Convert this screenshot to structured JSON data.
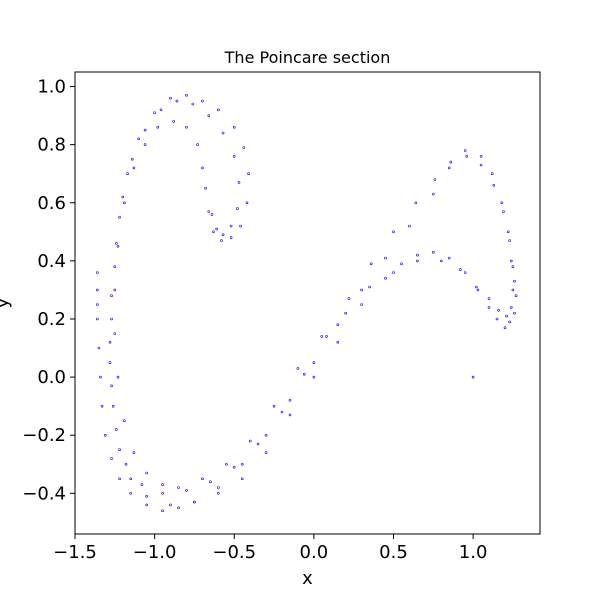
{
  "chart_data": {
    "type": "scatter",
    "title": "The Poincare section",
    "xlabel": "x",
    "ylabel": "y",
    "xlim": [
      -1.5,
      1.42
    ],
    "ylim": [
      -0.54,
      1.05
    ],
    "x_ticks": [
      -1.5,
      -1.0,
      -0.5,
      0.0,
      0.5,
      1.0
    ],
    "x_tick_labels": [
      "−1.5",
      "−1.0",
      "−0.5",
      "0.0",
      "0.5",
      "1.0"
    ],
    "y_ticks": [
      -0.4,
      -0.2,
      0.0,
      0.2,
      0.4,
      0.6,
      0.8,
      1.0
    ],
    "y_tick_labels": [
      "−0.4",
      "−0.2",
      "0.0",
      "0.2",
      "0.4",
      "0.6",
      "0.8",
      "1.0"
    ],
    "grid": false,
    "marker_color": "#0000ff",
    "series": [
      {
        "points": [
          [
            -1.36,
            0.36
          ],
          [
            -1.36,
            0.3
          ],
          [
            -1.36,
            0.25
          ],
          [
            -1.36,
            0.2
          ],
          [
            -1.35,
            0.1
          ],
          [
            -1.34,
            0.0
          ],
          [
            -1.33,
            -0.1
          ],
          [
            -1.31,
            -0.2
          ],
          [
            -1.27,
            -0.28
          ],
          [
            -1.22,
            -0.35
          ],
          [
            -1.15,
            -0.4
          ],
          [
            -1.05,
            -0.44
          ],
          [
            -0.95,
            -0.46
          ],
          [
            -0.85,
            -0.45
          ],
          [
            -0.75,
            -0.43
          ],
          [
            -0.6,
            -0.38
          ],
          [
            -0.45,
            -0.3
          ],
          [
            -0.3,
            -0.2
          ],
          [
            -0.15,
            -0.08
          ],
          [
            0.0,
            0.05
          ],
          [
            0.15,
            0.18
          ],
          [
            0.3,
            0.3
          ],
          [
            0.45,
            0.41
          ],
          [
            0.6,
            0.52
          ],
          [
            0.75,
            0.63
          ],
          [
            0.85,
            0.72
          ],
          [
            0.95,
            0.78
          ],
          [
            1.05,
            0.76
          ],
          [
            1.12,
            0.7
          ],
          [
            1.18,
            0.6
          ],
          [
            1.22,
            0.5
          ],
          [
            1.24,
            0.4
          ],
          [
            1.26,
            0.33
          ],
          [
            1.27,
            0.28
          ],
          [
            1.26,
            0.22
          ],
          [
            1.23,
            0.19
          ],
          [
            1.2,
            0.17
          ],
          [
            1.15,
            0.2
          ],
          [
            1.1,
            0.24
          ],
          [
            1.03,
            0.3
          ],
          [
            0.95,
            0.36
          ],
          [
            0.85,
            0.41
          ],
          [
            0.75,
            0.43
          ],
          [
            0.65,
            0.42
          ],
          [
            0.55,
            0.39
          ],
          [
            0.45,
            0.34
          ],
          [
            0.3,
            0.25
          ],
          [
            0.15,
            0.12
          ],
          [
            0.0,
            0.0
          ],
          [
            -0.15,
            -0.13
          ],
          [
            -0.3,
            -0.26
          ],
          [
            -0.45,
            -0.35
          ],
          [
            -0.6,
            -0.4
          ],
          [
            -0.75,
            -0.43
          ],
          [
            -0.9,
            -0.44
          ],
          [
            -1.05,
            -0.41
          ],
          [
            -1.15,
            -0.35
          ],
          [
            -1.22,
            -0.25
          ],
          [
            -1.26,
            -0.1
          ],
          [
            -1.28,
            0.05
          ],
          [
            -1.27,
            0.2
          ],
          [
            -1.25,
            0.38
          ],
          [
            -1.22,
            0.55
          ],
          [
            -1.17,
            0.7
          ],
          [
            -1.1,
            0.82
          ],
          [
            -1.0,
            0.91
          ],
          [
            -0.9,
            0.96
          ],
          [
            -0.8,
            0.97
          ],
          [
            -0.7,
            0.95
          ],
          [
            -0.6,
            0.92
          ],
          [
            -0.5,
            0.86
          ],
          [
            -0.44,
            0.79
          ],
          [
            -0.41,
            0.7
          ],
          [
            -0.42,
            0.6
          ],
          [
            -0.46,
            0.52
          ],
          [
            -0.52,
            0.48
          ],
          [
            -0.58,
            0.47
          ],
          [
            -0.63,
            0.5
          ],
          [
            -0.66,
            0.57
          ],
          [
            -0.68,
            0.65
          ],
          [
            -0.7,
            0.72
          ],
          [
            -0.73,
            0.8
          ],
          [
            -0.8,
            0.86
          ],
          [
            -0.88,
            0.88
          ],
          [
            -0.98,
            0.86
          ],
          [
            -1.06,
            0.8
          ],
          [
            -1.13,
            0.72
          ],
          [
            -1.19,
            0.6
          ],
          [
            -1.23,
            0.45
          ],
          [
            -1.25,
            0.3
          ],
          [
            -1.25,
            0.15
          ],
          [
            -1.23,
            0.0
          ],
          [
            -1.19,
            -0.15
          ],
          [
            -1.13,
            -0.26
          ],
          [
            -1.05,
            -0.33
          ],
          [
            -0.95,
            -0.37
          ],
          [
            -0.85,
            -0.38
          ],
          [
            -0.7,
            -0.35
          ],
          [
            -0.55,
            -0.3
          ],
          [
            -0.4,
            -0.22
          ],
          [
            -0.25,
            -0.1
          ],
          [
            -0.1,
            0.03
          ],
          [
            0.05,
            0.14
          ],
          [
            0.2,
            0.22
          ],
          [
            0.35,
            0.31
          ],
          [
            0.5,
            0.36
          ],
          [
            0.65,
            0.4
          ],
          [
            0.8,
            0.4
          ],
          [
            0.92,
            0.37
          ],
          [
            1.02,
            0.31
          ],
          [
            1.1,
            0.27
          ],
          [
            1.16,
            0.23
          ],
          [
            1.21,
            0.21
          ],
          [
            1.24,
            0.24
          ],
          [
            1.25,
            0.3
          ],
          [
            1.25,
            0.38
          ],
          [
            1.23,
            0.47
          ],
          [
            1.19,
            0.57
          ],
          [
            1.13,
            0.66
          ],
          [
            1.05,
            0.73
          ],
          [
            0.96,
            0.76
          ],
          [
            0.86,
            0.74
          ],
          [
            0.76,
            0.68
          ],
          [
            0.64,
            0.6
          ],
          [
            0.5,
            0.5
          ],
          [
            0.36,
            0.39
          ],
          [
            0.22,
            0.27
          ],
          [
            0.08,
            0.14
          ],
          [
            -0.06,
            0.01
          ],
          [
            -0.2,
            -0.12
          ],
          [
            -0.35,
            -0.23
          ],
          [
            -0.5,
            -0.31
          ],
          [
            -0.65,
            -0.36
          ],
          [
            -0.8,
            -0.39
          ],
          [
            -0.95,
            -0.4
          ],
          [
            -1.08,
            -0.37
          ],
          [
            -1.18,
            -0.3
          ],
          [
            -1.24,
            -0.18
          ],
          [
            -1.27,
            -0.03
          ],
          [
            -1.28,
            0.12
          ],
          [
            -1.27,
            0.28
          ],
          [
            -1.24,
            0.46
          ],
          [
            -1.2,
            0.62
          ],
          [
            -1.14,
            0.75
          ],
          [
            -1.06,
            0.85
          ],
          [
            -0.96,
            0.92
          ],
          [
            -0.86,
            0.95
          ],
          [
            -0.76,
            0.94
          ],
          [
            -0.66,
            0.9
          ],
          [
            -0.57,
            0.84
          ],
          [
            -0.5,
            0.76
          ],
          [
            -0.47,
            0.67
          ],
          [
            -0.48,
            0.58
          ],
          [
            -0.52,
            0.52
          ],
          [
            -0.57,
            0.49
          ],
          [
            -0.61,
            0.51
          ],
          [
            -0.64,
            0.56
          ],
          [
            1.0,
            0.0
          ]
        ]
      }
    ]
  }
}
